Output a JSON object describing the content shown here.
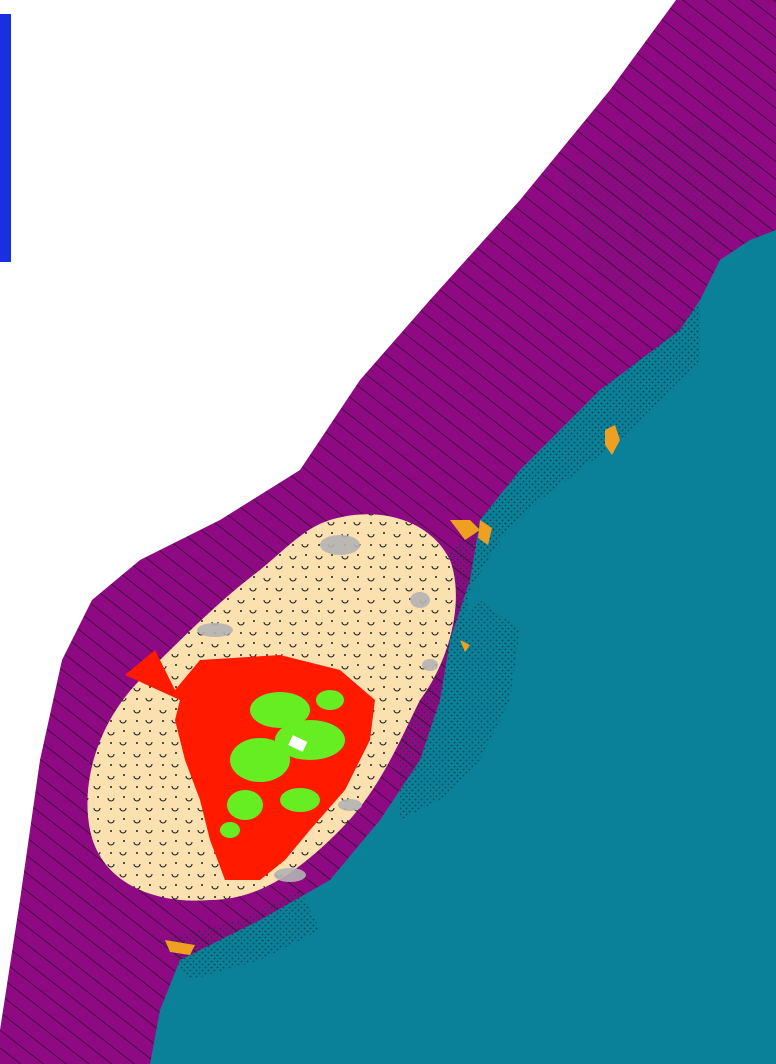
{
  "map": {
    "legend_swatch_color": "#1a2fe0",
    "colors": {
      "background": "#ffffff",
      "purple_zone": "#8e0a82",
      "purple_hatch": "#1a0a1a",
      "teal_zone": "#0a8099",
      "teal_stipple": "#0b3a3f",
      "sand_zone": "#fbe0b0",
      "sand_symbol": "#222222",
      "gray_patch": "#b4b4b4",
      "red_zone": "#ff1a00",
      "green_patch": "#66ee22",
      "orange_patch": "#f0a020",
      "white_marker": "#ffffff"
    }
  }
}
